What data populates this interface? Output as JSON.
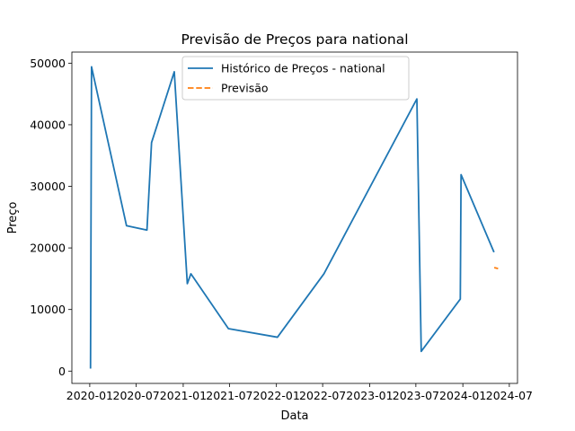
{
  "chart_data": {
    "type": "line",
    "title": "Previsão de Preços para national",
    "xlabel": "Data",
    "ylabel": "Preço",
    "xlim": [
      "2019-10-23",
      "2024-08-02"
    ],
    "ylim": [
      -2000,
      51800
    ],
    "x_ticks": [
      "2020-01-01",
      "2020-07-01",
      "2021-01-01",
      "2021-07-01",
      "2022-01-01",
      "2022-07-01",
      "2023-01-01",
      "2023-07-01",
      "2024-01-01",
      "2024-07-01"
    ],
    "x_tick_labels": [
      "2020-01",
      "2020-07",
      "2021-01",
      "2021-07",
      "2022-01",
      "2022-07",
      "2023-01",
      "2023-07",
      "2024-01",
      "2024-07"
    ],
    "y_ticks": [
      0,
      10000,
      20000,
      30000,
      40000,
      50000
    ],
    "y_tick_labels": [
      "0",
      "10000",
      "20000",
      "30000",
      "40000",
      "50000"
    ],
    "legend_position": "upper center",
    "grid": false,
    "series": [
      {
        "name": "Histórico de Preços - national",
        "color": "#1f77b4",
        "style": "solid",
        "points": [
          {
            "x": "2020-01-04",
            "y": 400
          },
          {
            "x": "2020-01-08",
            "y": 49400
          },
          {
            "x": "2020-05-24",
            "y": 23600
          },
          {
            "x": "2020-08-12",
            "y": 22900
          },
          {
            "x": "2020-08-30",
            "y": 37100
          },
          {
            "x": "2020-11-27",
            "y": 48600
          },
          {
            "x": "2021-01-17",
            "y": 14200
          },
          {
            "x": "2021-01-31",
            "y": 15800
          },
          {
            "x": "2021-06-27",
            "y": 6900
          },
          {
            "x": "2022-01-05",
            "y": 5500
          },
          {
            "x": "2022-07-06",
            "y": 15800
          },
          {
            "x": "2023-07-05",
            "y": 44200
          },
          {
            "x": "2023-07-22",
            "y": 3200
          },
          {
            "x": "2023-12-22",
            "y": 11700
          },
          {
            "x": "2023-12-25",
            "y": 31900
          },
          {
            "x": "2024-05-02",
            "y": 19300
          }
        ]
      },
      {
        "name": "Previsão",
        "color": "#ff7f0e",
        "style": "dashed",
        "points": [
          {
            "x": "2024-05-03",
            "y": 16800
          },
          {
            "x": "2024-05-18",
            "y": 16650
          }
        ]
      }
    ]
  }
}
